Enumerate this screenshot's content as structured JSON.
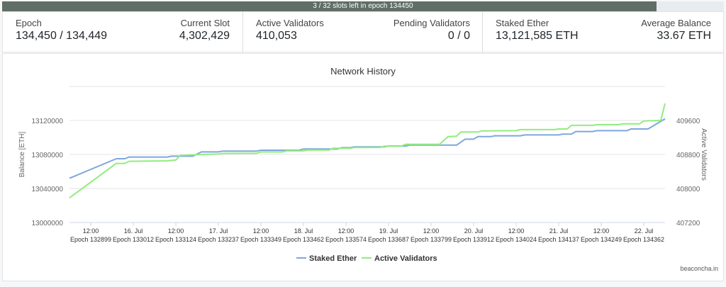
{
  "progress": {
    "text": "3 / 32 slots left in epoch 134450",
    "fraction": 0.90625
  },
  "stats": {
    "epoch": {
      "label": "Epoch",
      "value": "134,450 / 134,449"
    },
    "current_slot": {
      "label": "Current Slot",
      "value": "4,302,429"
    },
    "active_validators": {
      "label": "Active Validators",
      "value": "410,053"
    },
    "pending_validators": {
      "label": "Pending Validators",
      "value": "0 / 0"
    },
    "staked_ether": {
      "label": "Staked Ether",
      "value": "13,121,585 ETH"
    },
    "average_balance": {
      "label": "Average Balance",
      "value": "33.67 ETH"
    }
  },
  "credit": "beaconcha.in",
  "colors": {
    "staked": "#7ea7dc",
    "validators": "#90ed7d",
    "grid": "#e6e6e6"
  },
  "chart_data": {
    "type": "line",
    "title": "Network History",
    "ylabel": "Balance [ETH]",
    "y2label": "Active Validators",
    "ylim": [
      13000000,
      13160000
    ],
    "y2lim": [
      407200,
      410400
    ],
    "yticks": [
      "13000000",
      "13040000",
      "13080000",
      "13120000"
    ],
    "y2ticks": [
      "407200",
      "408000",
      "408800",
      "409600"
    ],
    "xlim": [
      0,
      14
    ],
    "xticks": [
      {
        "x": 0.5,
        "top": "12:00",
        "bottom": "Epoch 132899"
      },
      {
        "x": 1.5,
        "top": "16. Jul",
        "bottom": "Epoch 133012"
      },
      {
        "x": 2.5,
        "top": "12:00",
        "bottom": "Epoch 133124"
      },
      {
        "x": 3.5,
        "top": "17. Jul",
        "bottom": "Epoch 133237"
      },
      {
        "x": 4.5,
        "top": "12:00",
        "bottom": "Epoch 133349"
      },
      {
        "x": 5.5,
        "top": "18. Jul",
        "bottom": "Epoch 133462"
      },
      {
        "x": 6.5,
        "top": "12:00",
        "bottom": "Epoch 133574"
      },
      {
        "x": 7.5,
        "top": "19. Jul",
        "bottom": "Epoch 133687"
      },
      {
        "x": 8.5,
        "top": "12:00",
        "bottom": "Epoch 133799"
      },
      {
        "x": 9.5,
        "top": "20. Jul",
        "bottom": "Epoch 133912"
      },
      {
        "x": 10.5,
        "top": "12:00",
        "bottom": "Epoch 134024"
      },
      {
        "x": 11.5,
        "top": "21. Jul",
        "bottom": "Epoch 134137"
      },
      {
        "x": 12.5,
        "top": "12:00",
        "bottom": "Epoch 134249"
      },
      {
        "x": 13.5,
        "top": "22. Jul",
        "bottom": "Epoch 134362"
      }
    ],
    "grid": true,
    "legend": "bottom-center",
    "series": [
      {
        "name": "Staked Ether",
        "axis": "left",
        "points": [
          [
            0,
            13052000
          ],
          [
            1.1,
            13075000
          ],
          [
            1.3,
            13075000
          ],
          [
            1.4,
            13077000
          ],
          [
            2.3,
            13077000
          ],
          [
            2.4,
            13078000
          ],
          [
            2.9,
            13078000
          ],
          [
            3.1,
            13083000
          ],
          [
            3.5,
            13083000
          ],
          [
            3.6,
            13084000
          ],
          [
            4.4,
            13084000
          ],
          [
            4.5,
            13085000
          ],
          [
            5.4,
            13085000
          ],
          [
            5.5,
            13086500
          ],
          [
            6.3,
            13086500
          ],
          [
            6.4,
            13088000
          ],
          [
            6.6,
            13088000
          ],
          [
            6.7,
            13089000
          ],
          [
            7.4,
            13089000
          ],
          [
            7.5,
            13090000
          ],
          [
            7.9,
            13090000
          ],
          [
            8,
            13091000
          ],
          [
            9.1,
            13091000
          ],
          [
            9.3,
            13098000
          ],
          [
            9.5,
            13098000
          ],
          [
            9.6,
            13101000
          ],
          [
            9.9,
            13101000
          ],
          [
            10,
            13102000
          ],
          [
            10.6,
            13102000
          ],
          [
            10.7,
            13103000
          ],
          [
            11.5,
            13103000
          ],
          [
            11.6,
            13104000
          ],
          [
            11.8,
            13104000
          ],
          [
            11.9,
            13107000
          ],
          [
            12.3,
            13107000
          ],
          [
            12.4,
            13108000
          ],
          [
            13.1,
            13108000
          ],
          [
            13.2,
            13110000
          ],
          [
            13.6,
            13110000
          ],
          [
            14,
            13122000
          ]
        ]
      },
      {
        "name": "Active Validators",
        "axis": "right",
        "points": [
          [
            0,
            407780
          ],
          [
            1.1,
            408590
          ],
          [
            1.3,
            408590
          ],
          [
            1.4,
            408640
          ],
          [
            2.3,
            408650
          ],
          [
            2.5,
            408670
          ],
          [
            2.6,
            408780
          ],
          [
            3.1,
            408800
          ],
          [
            3.5,
            408810
          ],
          [
            3.6,
            408825
          ],
          [
            4.4,
            408830
          ],
          [
            4.5,
            408860
          ],
          [
            5,
            408860
          ],
          [
            5.1,
            408885
          ],
          [
            5.5,
            408885
          ],
          [
            5.6,
            408905
          ],
          [
            6.1,
            408905
          ],
          [
            6.2,
            408945
          ],
          [
            6.6,
            408945
          ],
          [
            6.7,
            408965
          ],
          [
            7.3,
            408965
          ],
          [
            7.4,
            408995
          ],
          [
            7.8,
            408995
          ],
          [
            7.9,
            409040
          ],
          [
            8.7,
            409040
          ],
          [
            8.9,
            409220
          ],
          [
            9.1,
            409230
          ],
          [
            9.2,
            409330
          ],
          [
            9.6,
            409330
          ],
          [
            9.7,
            409355
          ],
          [
            10.5,
            409360
          ],
          [
            10.6,
            409385
          ],
          [
            11.4,
            409385
          ],
          [
            11.5,
            409400
          ],
          [
            11.7,
            409400
          ],
          [
            11.8,
            409485
          ],
          [
            12.3,
            409485
          ],
          [
            12.4,
            409500
          ],
          [
            12.9,
            409500
          ],
          [
            13,
            409520
          ],
          [
            13.4,
            409520
          ],
          [
            13.5,
            409590
          ],
          [
            13.9,
            409600
          ],
          [
            14,
            410000
          ]
        ]
      }
    ]
  }
}
